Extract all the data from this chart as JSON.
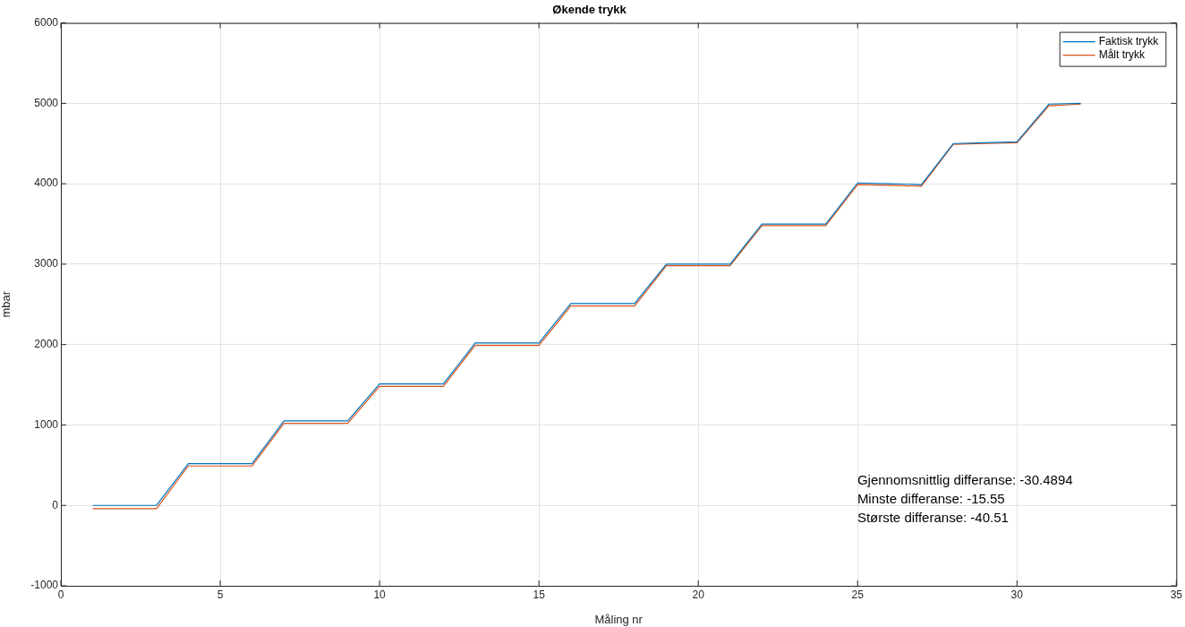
{
  "chart_data": {
    "type": "line",
    "title": "Økende trykk",
    "xlabel": "Måling nr",
    "ylabel": "mbar",
    "x": [
      1,
      2,
      3,
      4,
      5,
      6,
      7,
      8,
      9,
      10,
      11,
      12,
      13,
      14,
      15,
      16,
      17,
      18,
      19,
      20,
      21,
      22,
      23,
      24,
      25,
      26,
      27,
      28,
      29,
      30,
      31,
      32
    ],
    "series": [
      {
        "name": "Faktisk trykk",
        "color": "#0072bd",
        "values": [
          0,
          0,
          0,
          520,
          520,
          520,
          1050,
          1050,
          1050,
          1510,
          1510,
          1510,
          2020,
          2020,
          2020,
          2510,
          2510,
          2510,
          3000,
          3000,
          3000,
          3500,
          3500,
          3500,
          4010,
          4000,
          3990,
          4500,
          4510,
          4520,
          4990,
          5000
        ]
      },
      {
        "name": "Målt trykk",
        "color": "#d95319",
        "values": [
          -40,
          -40,
          -40,
          490,
          490,
          490,
          1020,
          1020,
          1020,
          1480,
          1480,
          1480,
          1990,
          1990,
          1990,
          2480,
          2480,
          2480,
          2980,
          2980,
          2980,
          3480,
          3480,
          3480,
          3990,
          3980,
          3970,
          4490,
          4500,
          4510,
          4970,
          4990
        ]
      }
    ],
    "xlim": [
      0,
      35
    ],
    "xticks": [
      0,
      5,
      10,
      15,
      20,
      25,
      30,
      35
    ],
    "ylim": [
      -1000,
      6000
    ],
    "yticks": [
      -1000,
      0,
      1000,
      2000,
      3000,
      4000,
      5000,
      6000
    ],
    "grid": true,
    "legend": "top right",
    "marker": "none",
    "line_style": "solid",
    "annotations": [
      "Gjennomsnittlig differanse: -30.4894",
      "Minste differanse: -15.55",
      "Største differanse: -40.51"
    ]
  }
}
